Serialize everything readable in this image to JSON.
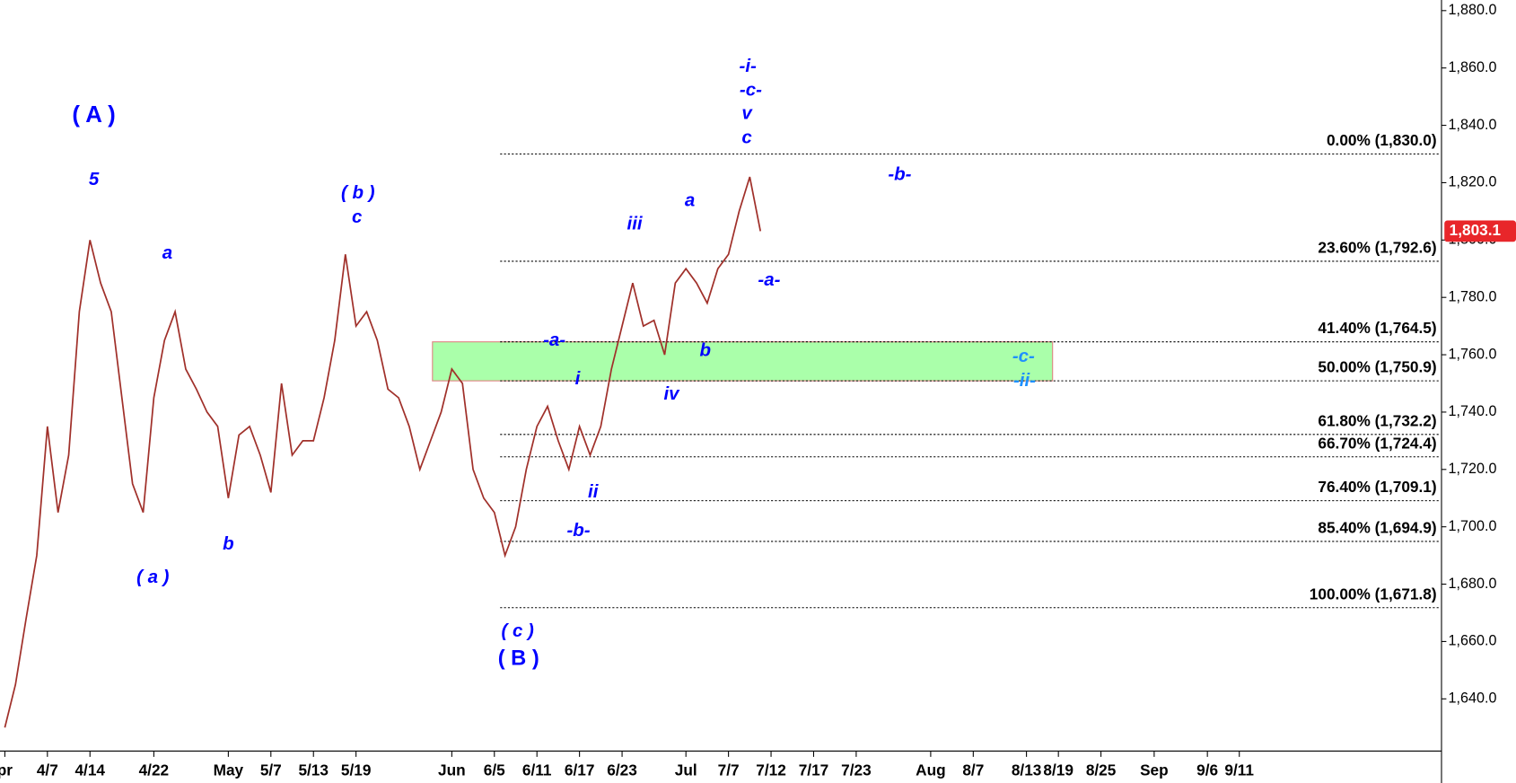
{
  "chart_data": {
    "type": "line",
    "categories": [
      "pr",
      null,
      null,
      null,
      "4/7",
      null,
      null,
      null,
      "4/14",
      null,
      null,
      null,
      null,
      null,
      "4/22",
      null,
      null,
      null,
      null,
      null,
      null,
      "May",
      null,
      null,
      null,
      "5/7",
      null,
      null,
      null,
      "5/13",
      null,
      null,
      null,
      "5/19",
      null,
      null,
      null,
      null,
      null,
      null,
      null,
      null,
      "Jun",
      null,
      null,
      null,
      "6/5",
      null,
      null,
      null,
      "6/11",
      null,
      null,
      null,
      "6/17",
      null,
      null,
      null,
      "6/23",
      null,
      null,
      null,
      null,
      null,
      "Jul",
      null,
      null,
      null,
      "7/7",
      null,
      null,
      null,
      "7/12",
      null,
      null,
      null,
      "7/17",
      null,
      null,
      null,
      "7/23",
      null,
      null,
      null,
      null,
      null,
      null,
      "Aug",
      null,
      null,
      null,
      "8/7",
      null,
      null,
      null,
      null,
      "8/13",
      null,
      null,
      "8/19",
      null,
      null,
      null,
      "8/25",
      null,
      null,
      null,
      null,
      "Sep",
      null,
      null,
      null,
      null,
      "9/6",
      null,
      null,
      "9/11",
      null
    ],
    "series": [
      {
        "color": "#a0302a",
        "values": [
          1630,
          1645,
          1668,
          1690,
          1735,
          1705,
          1725,
          1775,
          1800,
          1785,
          1775,
          1745,
          1715,
          1705,
          1745,
          1765,
          1775,
          1755,
          1748,
          1740,
          1735,
          1710,
          1732,
          1735,
          1725,
          1712,
          1750,
          1725,
          1730,
          1730,
          1745,
          1765,
          1795,
          1770,
          1775,
          1765,
          1748,
          1745,
          1735,
          1720,
          1730,
          1740,
          1755,
          1750,
          1720,
          1710,
          1705,
          1690,
          1700,
          1720,
          1735,
          1742,
          1730,
          1720,
          1735,
          1725,
          1735,
          1755,
          1770,
          1785,
          1770,
          1772,
          1760,
          1785,
          1790,
          1785,
          1778,
          1790,
          1795,
          1810,
          1822,
          1803.1,
          null,
          null,
          null,
          null,
          null,
          null,
          null,
          null,
          null,
          null,
          null,
          null,
          null,
          null,
          null,
          null,
          null,
          null,
          null,
          null,
          null,
          null,
          null,
          null,
          null,
          null,
          null,
          null,
          null,
          null,
          null,
          null,
          null,
          null,
          null,
          null,
          null,
          null,
          null,
          null,
          null,
          null,
          null,
          null,
          null,
          null
        ]
      }
    ],
    "ylim": [
      1621.8,
      1883.7
    ],
    "yticks": [
      {
        "value": 1640,
        "label": "1,640.0"
      },
      {
        "value": 1660,
        "label": "1,660.0"
      },
      {
        "value": 1680,
        "label": "1,680.0"
      },
      {
        "value": 1700,
        "label": "1,700.0"
      },
      {
        "value": 1720,
        "label": "1,720.0"
      },
      {
        "value": 1740,
        "label": "1,740.0"
      },
      {
        "value": 1760,
        "label": "1,760.0"
      },
      {
        "value": 1780,
        "label": "1,780.0"
      },
      {
        "value": 1800,
        "label": "1,800.0"
      },
      {
        "value": 1820,
        "label": "1,820.0"
      },
      {
        "value": 1840,
        "label": "1,840.0"
      },
      {
        "value": 1860,
        "label": "1,860.0"
      },
      {
        "value": 1880,
        "label": "1,880.0"
      }
    ],
    "last_price": {
      "value": 1803.1,
      "label": "1,803.1",
      "color": "#e8262a"
    },
    "fib_levels": [
      {
        "value": 1830,
        "label": "0.00% (1,830.0)"
      },
      {
        "value": 1792.6,
        "label": "23.60% (1,792.6)"
      },
      {
        "value": 1764.5,
        "label": "41.40% (1,764.5)"
      },
      {
        "value": 1750.9,
        "label": "50.00% (1,750.9)"
      },
      {
        "value": 1732.2,
        "label": "61.80% (1,732.2)"
      },
      {
        "value": 1724.4,
        "label": "66.70% (1,724.4)"
      },
      {
        "value": 1709.1,
        "label": "76.40% (1,709.1)"
      },
      {
        "value": 1694.9,
        "label": "85.40% (1,694.9)"
      },
      {
        "value": 1671.8,
        "label": "100.00% (1,671.8)"
      }
    ],
    "zone_color": "#aaffaa",
    "annotation_color": "#0000ff",
    "annotations": [
      "( A )",
      "5",
      "a",
      "( a )",
      "b",
      "( b )",
      "c",
      "( c )",
      "( B )",
      "-a-",
      "i",
      "-b-",
      "ii",
      "iii",
      "iv",
      "a",
      "b",
      "-i-",
      "-c-",
      "v",
      "c",
      "-a-",
      "-b-",
      "-c-",
      "-ii-"
    ]
  }
}
